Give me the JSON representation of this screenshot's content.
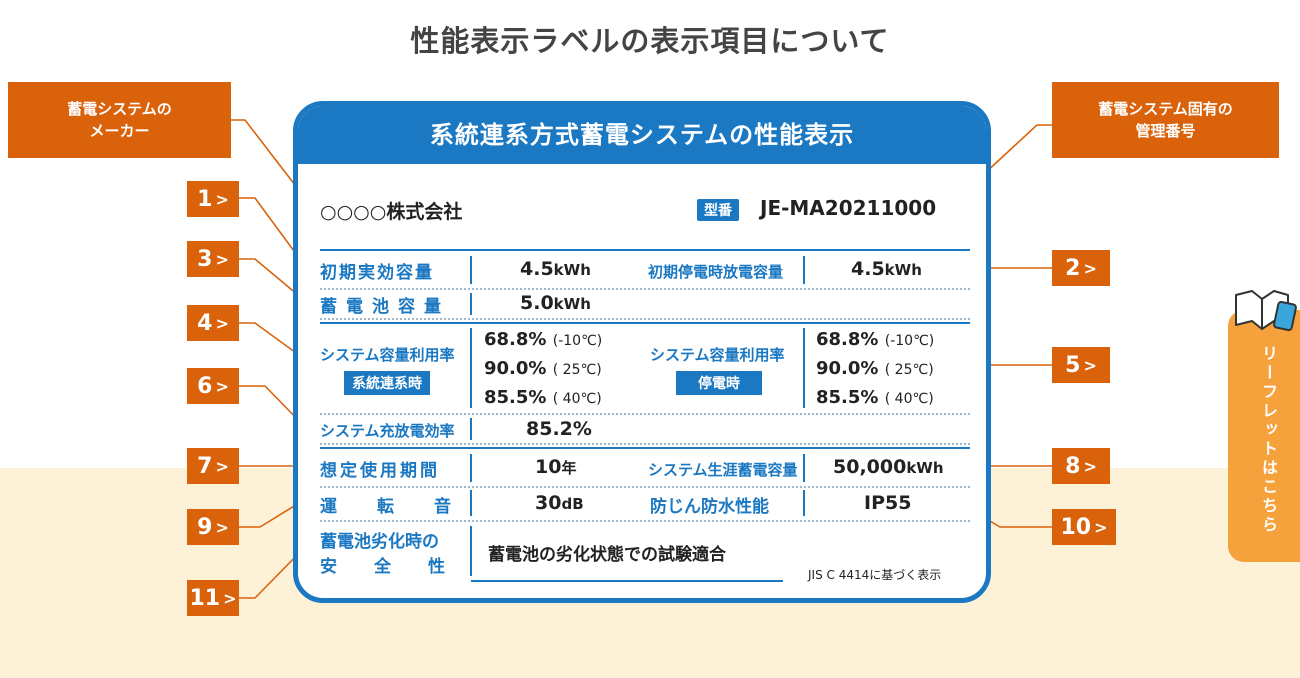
{
  "title": "性能表示ラベルの表示項目について",
  "callouts": {
    "maker": "蓄電システムの\nメーカー",
    "model": "蓄電システム固有の\n管理番号"
  },
  "numbers": [
    "1",
    "2",
    "3",
    "4",
    "5",
    "6",
    "7",
    "8",
    "9",
    "10",
    "11"
  ],
  "arrow_glyph": ">",
  "card": {
    "header": "系統連系方式蓄電システムの性能表示",
    "maker_value": "○○○○株式会社",
    "model_badge": "型番",
    "model_value": "JE-MA20211000",
    "rows": {
      "initial_capacity": {
        "label": "初期実効容量",
        "value": "4.5",
        "unit": "kWh"
      },
      "outage_capacity": {
        "label": "初期停電時放電容量",
        "value": "4.5",
        "unit": "kWh"
      },
      "battery_capacity": {
        "label": "蓄電池容量",
        "value": "5.0",
        "unit": "kWh"
      },
      "utilization_grid": {
        "label": "システム容量利用率",
        "tag": "系統連系時",
        "values": [
          {
            "value": "68.8",
            "unit": "%",
            "cond": "(-10℃)"
          },
          {
            "value": "90.0",
            "unit": "%",
            "cond": "( 25℃)"
          },
          {
            "value": "85.5",
            "unit": "%",
            "cond": "( 40℃)"
          }
        ]
      },
      "utilization_outage": {
        "label": "システム容量利用率",
        "tag": "停電時",
        "values": [
          {
            "value": "68.8",
            "unit": "%",
            "cond": "(-10℃)"
          },
          {
            "value": "90.0",
            "unit": "%",
            "cond": "( 25℃)"
          },
          {
            "value": "85.5",
            "unit": "%",
            "cond": "( 40℃)"
          }
        ]
      },
      "efficiency": {
        "label": "システム充放電効率",
        "value": "85.2",
        "unit": "%"
      },
      "usage_period": {
        "label": "想定使用期間",
        "value": "10",
        "unit": "年"
      },
      "lifetime_capacity": {
        "label": "システム生涯蓄電容量",
        "value": "50,000",
        "unit": "kWh"
      },
      "operating_noise": {
        "label": "運転音",
        "value": "30",
        "unit": "dB"
      },
      "ingress_protection": {
        "label": "防じん防水性能",
        "value": "IP55"
      },
      "degradation_safety": {
        "label_line1": "蓄電池劣化時の",
        "label_line2": "安全性",
        "value": "蓄電池の劣化状態での試験適合"
      }
    },
    "footnote": "JIS C 4414に基づく表示"
  },
  "side_tab": {
    "label": "リーフレットはこちら",
    "icon": "leaflet-icon"
  },
  "colors": {
    "accent_orange": "#d9620b",
    "label_blue": "#1b78c2",
    "tab_orange": "#f6a23c",
    "bottom_band": "#fdf1d8"
  }
}
